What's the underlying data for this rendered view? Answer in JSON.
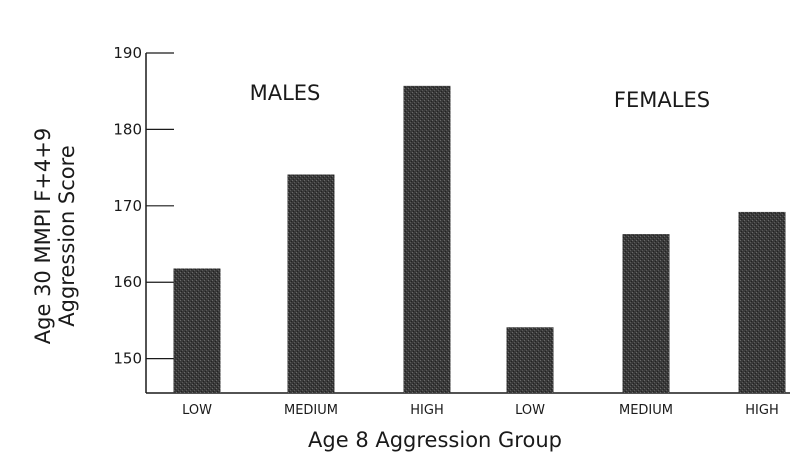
{
  "chart_data": {
    "type": "bar",
    "categories": [
      "LOW",
      "MEDIUM",
      "HIGH",
      "LOW",
      "MEDIUM",
      "HIGH"
    ],
    "groups": [
      {
        "label": "MALES",
        "categories": [
          "LOW",
          "MEDIUM",
          "HIGH"
        ],
        "values": [
          161.8,
          174.1,
          185.7
        ]
      },
      {
        "label": "FEMALES",
        "categories": [
          "LOW",
          "MEDIUM",
          "HIGH"
        ],
        "values": [
          154.1,
          166.3,
          169.2
        ]
      }
    ],
    "values": [
      161.8,
      174.1,
      185.7,
      154.1,
      166.3,
      169.2
    ],
    "xlabel": "Age 8 Aggression Group",
    "ylabel_lines": [
      "Age 30 MMPI F+4+9",
      "Aggression Score"
    ],
    "ylim": [
      145.5,
      190
    ],
    "yticks": [
      150,
      160,
      170,
      180,
      190
    ],
    "grid": false,
    "bar_color": "#3a3a3a"
  }
}
